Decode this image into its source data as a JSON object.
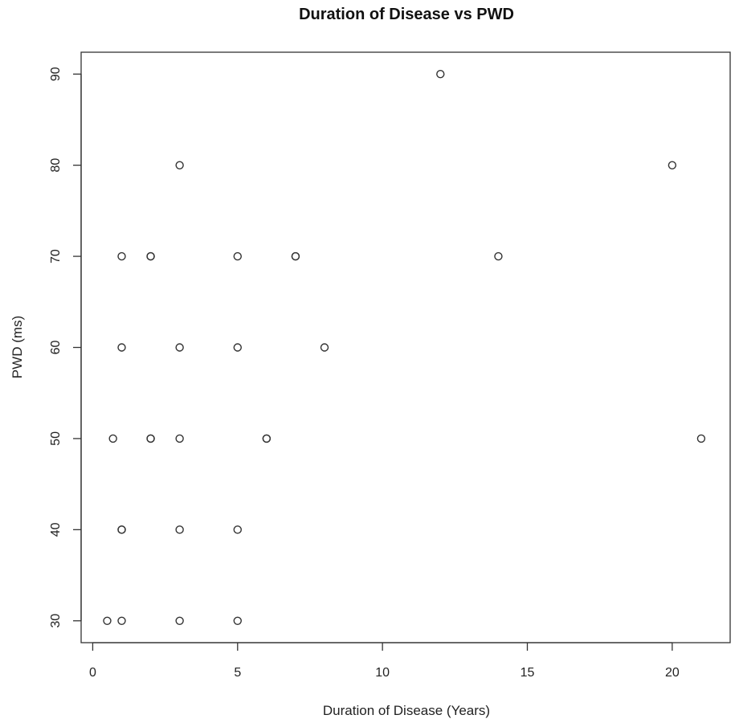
{
  "chart_data": {
    "type": "scatter",
    "title": "Duration of Disease vs PWD",
    "xlabel": "Duration of Disease (Years)",
    "ylabel": "PWD (ms)",
    "xlim": [
      -0.4,
      22
    ],
    "ylim": [
      27.6,
      92.4
    ],
    "xticks": [
      0,
      5,
      10,
      15,
      20
    ],
    "yticks": [
      30,
      40,
      50,
      60,
      70,
      80,
      90
    ],
    "grid": false,
    "legend": "none",
    "marker": "open-circle",
    "points": [
      {
        "x": 0.5,
        "y": 30
      },
      {
        "x": 1,
        "y": 30
      },
      {
        "x": 3,
        "y": 30
      },
      {
        "x": 5,
        "y": 30
      },
      {
        "x": 1,
        "y": 40
      },
      {
        "x": 1,
        "y": 40
      },
      {
        "x": 3,
        "y": 40
      },
      {
        "x": 5,
        "y": 40
      },
      {
        "x": 0.7,
        "y": 50
      },
      {
        "x": 2,
        "y": 50
      },
      {
        "x": 2,
        "y": 50
      },
      {
        "x": 3,
        "y": 50
      },
      {
        "x": 6,
        "y": 50
      },
      {
        "x": 6,
        "y": 50
      },
      {
        "x": 21,
        "y": 50
      },
      {
        "x": 1,
        "y": 60
      },
      {
        "x": 3,
        "y": 60
      },
      {
        "x": 5,
        "y": 60
      },
      {
        "x": 8,
        "y": 60
      },
      {
        "x": 1,
        "y": 70
      },
      {
        "x": 2,
        "y": 70
      },
      {
        "x": 2,
        "y": 70
      },
      {
        "x": 5,
        "y": 70
      },
      {
        "x": 7,
        "y": 70
      },
      {
        "x": 7,
        "y": 70
      },
      {
        "x": 14,
        "y": 70
      },
      {
        "x": 3,
        "y": 80
      },
      {
        "x": 20,
        "y": 80
      },
      {
        "x": 12,
        "y": 90
      }
    ]
  }
}
